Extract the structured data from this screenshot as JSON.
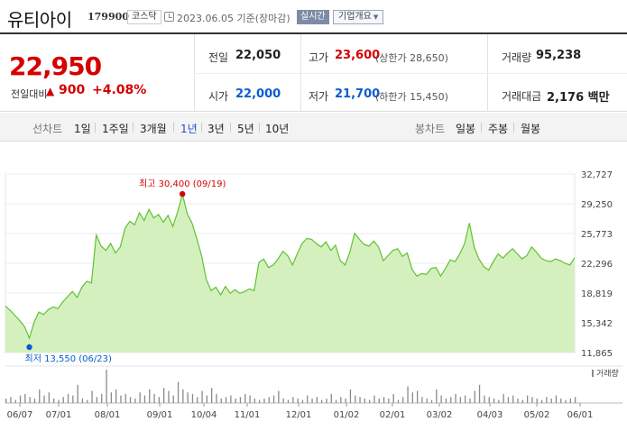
{
  "header": {
    "name": "유티아이",
    "code": "179900",
    "market": "코스닥",
    "date_label": "2023.06.05 기준(장마감)",
    "realtime_label": "실시간",
    "overview_label": "기업개요"
  },
  "quote": {
    "price": "22,950",
    "change_label": "전일대비",
    "change_arrow": "▲",
    "change": "900",
    "change_rate": "+4.08%",
    "prev_close_label": "전일",
    "prev_close": "22,050",
    "high_label": "고가",
    "high": "23,600",
    "upper_limit": "(상한가 28,650)",
    "volume_label": "거래량",
    "volume": "95,238",
    "open_label": "시가",
    "open": "22,000",
    "low_label": "저가",
    "low": "21,700",
    "lower_limit": "(하한가 15,450)",
    "amount_label": "거래대금",
    "amount": "2,176 백만"
  },
  "tabs": {
    "line_chart_label": "선차트",
    "line_periods": [
      "1일",
      "1주일",
      "3개월",
      "1년",
      "3년",
      "5년",
      "10년"
    ],
    "active_period": "1년",
    "candle_chart_label": "봉차트",
    "candle_periods": [
      "일봉",
      "주봉",
      "월봉"
    ]
  },
  "colors": {
    "up": "#d60000",
    "down": "#0a5bd0",
    "line": "#5fc230",
    "fill": "#d5f0bf",
    "volume_bar": "#8a8a8a",
    "active_tab": "#1e4fc4"
  },
  "chart_data": {
    "type": "area",
    "y_ticks": [
      "32,727",
      "29,250",
      "25,773",
      "22,296",
      "18,819",
      "15,342",
      "11,865"
    ],
    "ylim": [
      11865,
      32727
    ],
    "x_ticks": [
      "06/07",
      "07/01",
      "08/01",
      "09/01",
      "10/04",
      "11/01",
      "12/01",
      "01/02",
      "02/01",
      "03/02",
      "04/03",
      "05/02",
      "06/01"
    ],
    "high_annotation": "최고 30,400 (09/19)",
    "low_annotation": "최저 13,550 (06/23)",
    "volume_legend": "거래량",
    "series": [
      {
        "values": [
          17300,
          16800,
          16200,
          15600,
          14900,
          13550,
          15400,
          16600,
          16300,
          16900,
          17200,
          17000,
          17800,
          18400,
          19000,
          18300,
          19500,
          20200,
          20000,
          25600,
          24300,
          23800,
          24600,
          23500,
          24200,
          26400,
          27200,
          26800,
          28200,
          27300,
          28600,
          27600,
          28000,
          27100,
          27900,
          26600,
          28300,
          30400,
          28100,
          27000,
          25200,
          23200,
          20400,
          19100,
          19500,
          18600,
          19600,
          18800,
          19200,
          18800,
          19000,
          19300,
          19100,
          22400,
          22800,
          21800,
          22100,
          22800,
          23700,
          23200,
          22100,
          23400,
          24600,
          25200,
          25100,
          24600,
          24200,
          24800,
          23800,
          24400,
          22600,
          22100,
          23600,
          25800,
          25100,
          24500,
          24300,
          24900,
          24200,
          22600,
          23200,
          23800,
          24000,
          23100,
          23500,
          21600,
          20800,
          21100,
          21000,
          21700,
          21800,
          20800,
          21700,
          22700,
          22500,
          23400,
          24600,
          27000,
          24200,
          22800,
          21900,
          21500,
          22500,
          23400,
          22900,
          23500,
          24000,
          23400,
          22800,
          23200,
          24200,
          23600,
          22900,
          22600,
          22500,
          22800,
          22600,
          22300,
          22100,
          22950
        ]
      }
    ],
    "volume": [
      3,
      4,
      2,
      5,
      6,
      4,
      3,
      9,
      5,
      7,
      3,
      2,
      4,
      6,
      5,
      12,
      3,
      2,
      8,
      4,
      6,
      22,
      7,
      9,
      5,
      6,
      4,
      3,
      7,
      5,
      9,
      6,
      4,
      10,
      8,
      5,
      14,
      9,
      7,
      6,
      4,
      8,
      5,
      10,
      6,
      3,
      4,
      5,
      3,
      4,
      6,
      5,
      3,
      2,
      3,
      4,
      5,
      8,
      3,
      2,
      4,
      3,
      2,
      5,
      3,
      4,
      2,
      3,
      6,
      2,
      4,
      3,
      9,
      5,
      4,
      3,
      2,
      5,
      3,
      4,
      3,
      6,
      2,
      4,
      11,
      7,
      8,
      4,
      3,
      2,
      9,
      5,
      3,
      4,
      6,
      4,
      5,
      3,
      8,
      12,
      5,
      4,
      3,
      2,
      6,
      4,
      5,
      3,
      2,
      5,
      4,
      3,
      2,
      4,
      3,
      5,
      3,
      2,
      3,
      4
    ]
  }
}
